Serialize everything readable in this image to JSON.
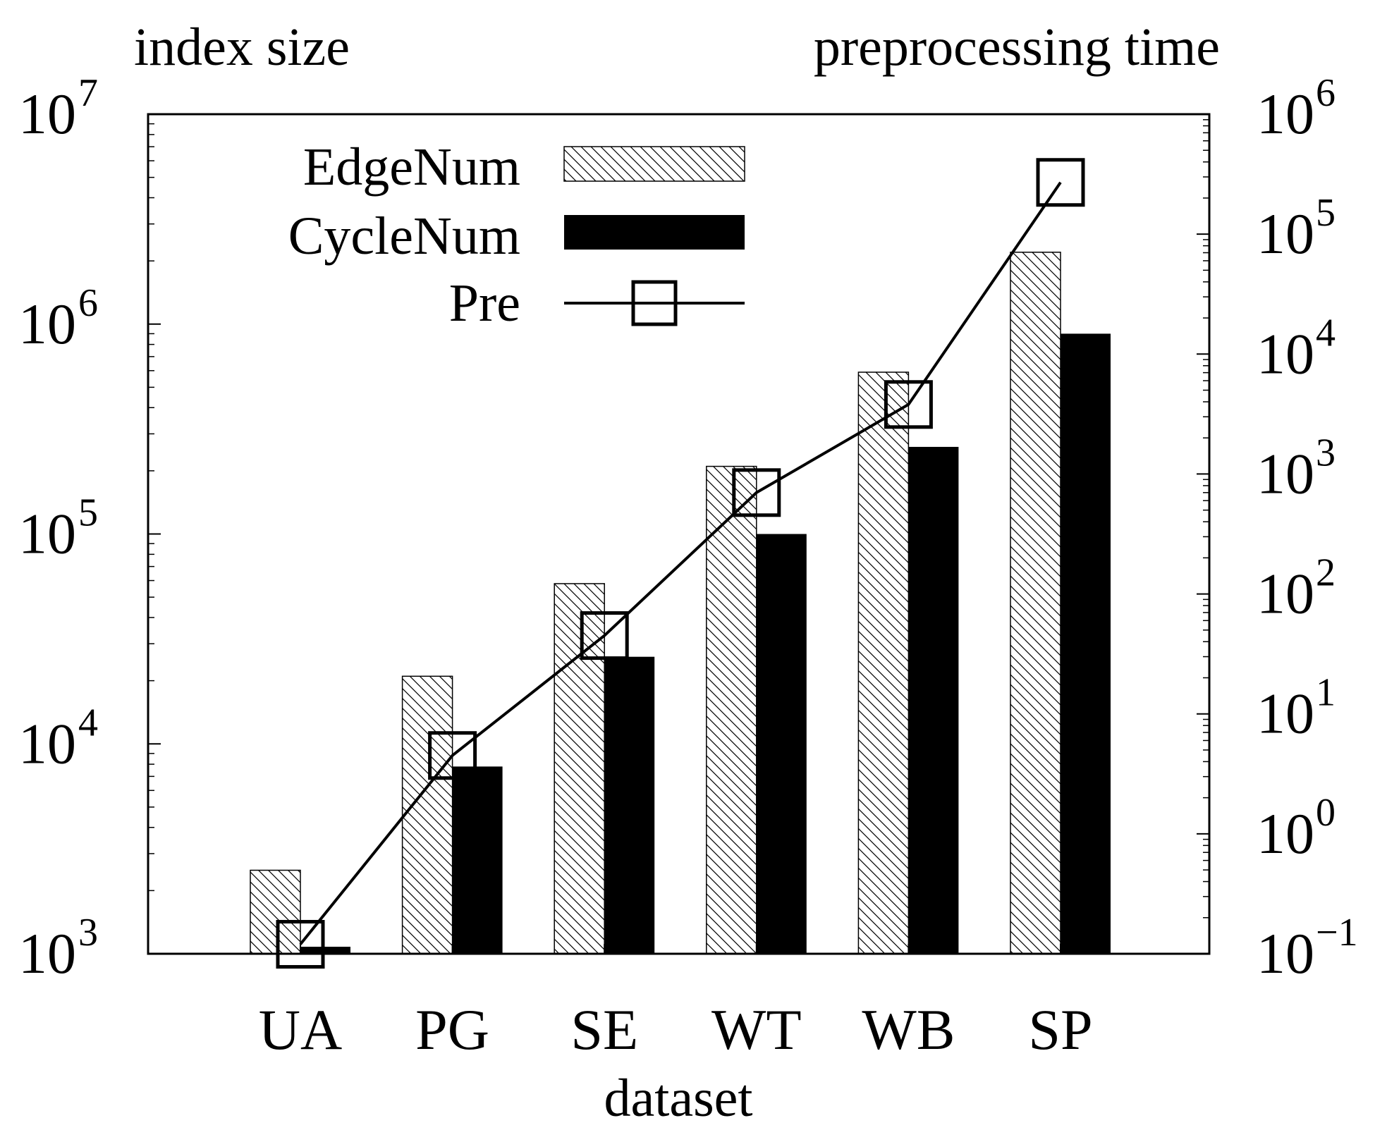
{
  "chart_data": {
    "type": "bar",
    "title": "",
    "categories": [
      "UA",
      "PG",
      "SE",
      "WT",
      "WB",
      "SP"
    ],
    "xlabel": "dataset",
    "ylabel": "index size",
    "ylabel_right": "preprocessing time",
    "y_scale": "log",
    "y2_scale": "log",
    "ylim": [
      1000,
      10000000
    ],
    "y2lim": [
      0.1,
      1000000
    ],
    "y_ticks": [
      {
        "base": "10",
        "exp": "3"
      },
      {
        "base": "10",
        "exp": "4"
      },
      {
        "base": "10",
        "exp": "5"
      },
      {
        "base": "10",
        "exp": "6"
      },
      {
        "base": "10",
        "exp": "7"
      }
    ],
    "y2_ticks": [
      {
        "base": "10",
        "exp": "−1"
      },
      {
        "base": "10",
        "exp": "0"
      },
      {
        "base": "10",
        "exp": "1"
      },
      {
        "base": "10",
        "exp": "2"
      },
      {
        "base": "10",
        "exp": "3"
      },
      {
        "base": "10",
        "exp": "4"
      },
      {
        "base": "10",
        "exp": "5"
      },
      {
        "base": "10",
        "exp": "6"
      }
    ],
    "series": [
      {
        "name": "EdgeNum",
        "kind": "bar",
        "axis": "left",
        "style": "hatched",
        "values": [
          2500,
          21000,
          58000,
          210000,
          590000,
          2200000
        ]
      },
      {
        "name": "CycleNum",
        "kind": "bar",
        "axis": "left",
        "style": "solid",
        "color": "#000000",
        "values": [
          1080,
          7800,
          26000,
          100000,
          260000,
          900000
        ]
      },
      {
        "name": "Pre",
        "kind": "line",
        "axis": "right",
        "marker": "open-square",
        "values": [
          0.12,
          4.5,
          45,
          700,
          3800,
          270000
        ]
      }
    ],
    "legend": {
      "position": "top-left",
      "entries": [
        "EdgeNum",
        "CycleNum",
        "Pre"
      ]
    }
  }
}
